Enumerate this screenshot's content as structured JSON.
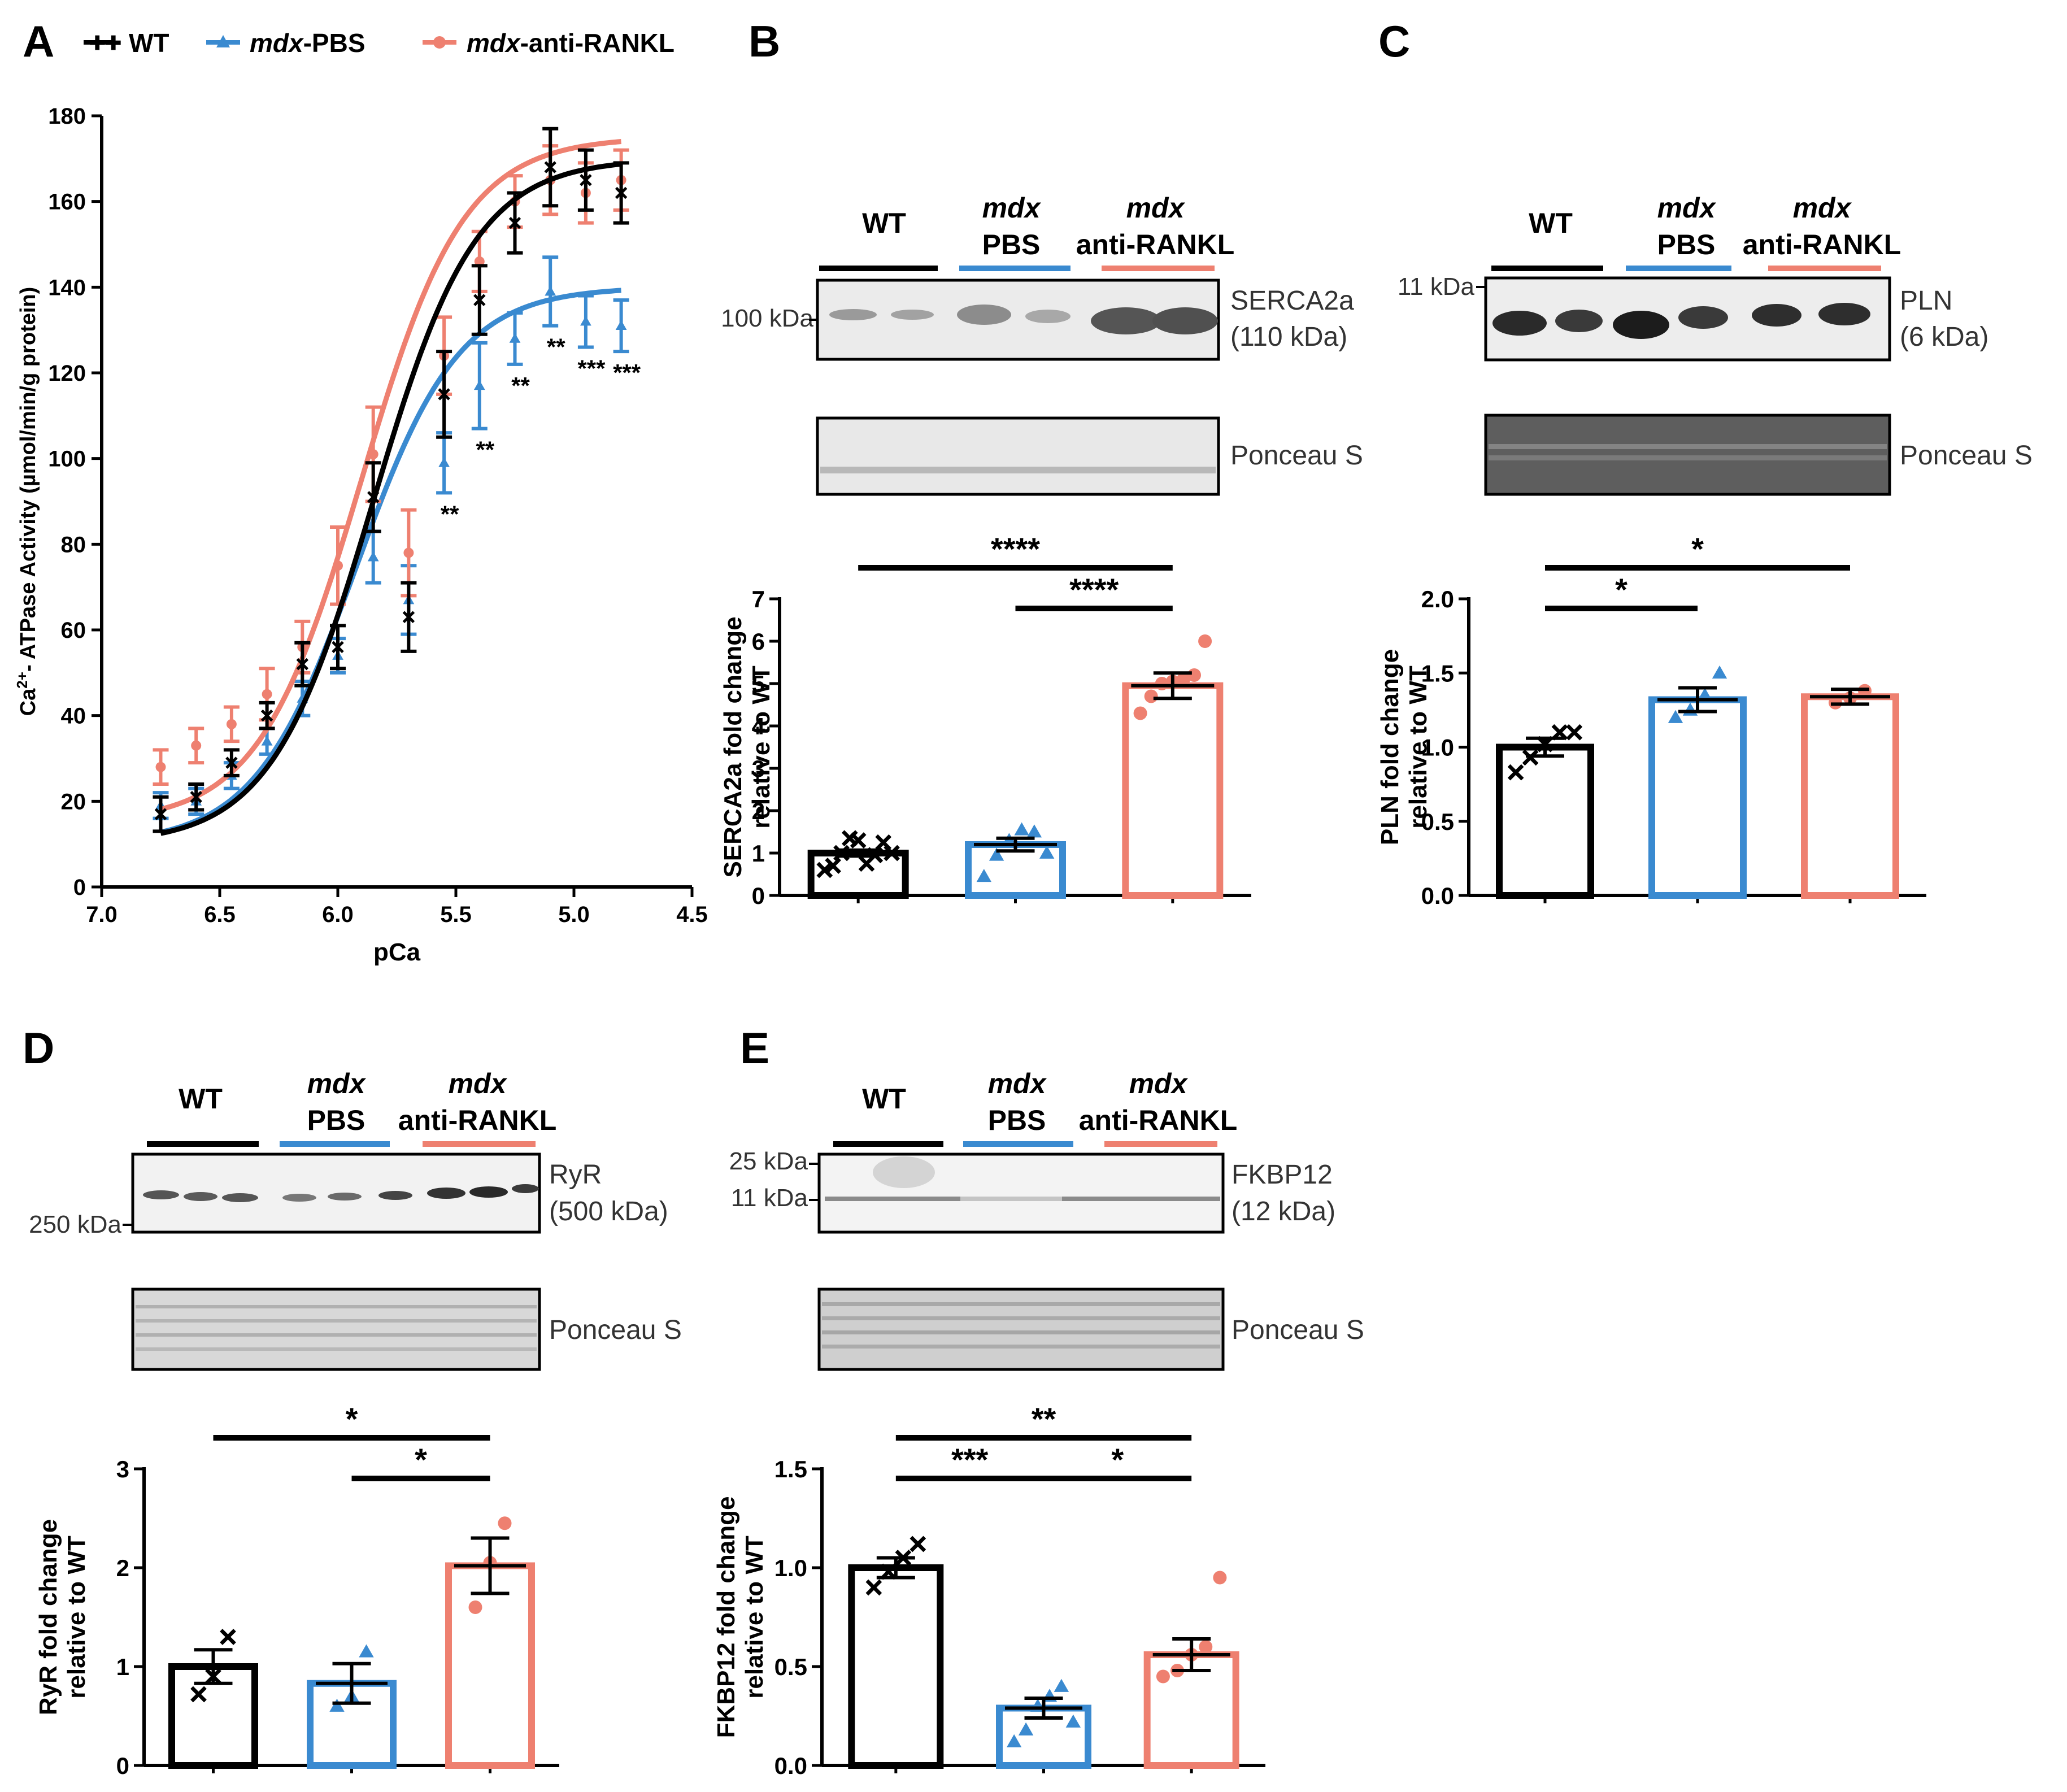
{
  "colors": {
    "wt": "#000000",
    "pbs": "#3a8ad0",
    "rankl": "#ee8070"
  },
  "legend": {
    "wt": "WT",
    "mdx": "mdx",
    "pbs_suffix": "-PBS",
    "rankl_suffix": "-anti-RANKL"
  },
  "panels": {
    "A": "A",
    "B": "B",
    "C": "C",
    "D": "D",
    "E": "E"
  },
  "lanes": {
    "wt": "WT",
    "mdx": "mdx",
    "pbs": "PBS",
    "rankl": "anti-RANKL"
  },
  "blots": {
    "B": {
      "marker": "100 kDa",
      "protein": "SERCA2a",
      "size": "(110 kDa)",
      "loading": "Ponceau S"
    },
    "C": {
      "marker": "11 kDa",
      "protein": "PLN",
      "size": "(6 kDa)",
      "loading": "Ponceau S"
    },
    "D": {
      "marker": "250 kDa",
      "protein": "RyR",
      "size": "(500 kDa)",
      "loading": "Ponceau S"
    },
    "E": {
      "marker1": "25 kDa",
      "marker2": "11 kDa",
      "protein": "FKBP12",
      "size": "(12 kDa)",
      "loading": "Ponceau S"
    }
  },
  "chart_data": [
    {
      "panel": "A",
      "type": "line",
      "xlabel": "pCa",
      "ylabel_prefix": "Ca",
      "ylabel_sup": "2+",
      "ylabel_suffix": "- ATPase Activity (µmol/min/g protein)",
      "xlim": [
        7.0,
        4.5
      ],
      "ylim": [
        0,
        180
      ],
      "xticks": [
        "7.0",
        "6.5",
        "6.0",
        "5.5",
        "5.0",
        "4.5"
      ],
      "yticks": [
        "0",
        "20",
        "40",
        "60",
        "80",
        "100",
        "120",
        "140",
        "160",
        "180"
      ],
      "x": [
        6.75,
        6.6,
        6.45,
        6.3,
        6.15,
        6.0,
        5.85,
        5.7,
        5.55,
        5.4,
        5.25,
        5.1,
        4.95,
        4.8
      ],
      "series": [
        {
          "name": "WT",
          "values": [
            17,
            21,
            29,
            40,
            52,
            56,
            91,
            63,
            115,
            137,
            155,
            168,
            165,
            162
          ],
          "errors": [
            4,
            3,
            3,
            3,
            5,
            5,
            8,
            8,
            10,
            8,
            7,
            9,
            7,
            7
          ],
          "fit_max": 170,
          "fit_min": 10,
          "fit_ec50": 5.85
        },
        {
          "name": "mdx-PBS",
          "values": [
            19,
            20,
            26,
            34,
            44,
            54,
            77,
            67,
            99,
            117,
            128,
            139,
            132,
            131
          ],
          "errors": [
            3,
            3,
            3,
            3,
            4,
            4,
            6,
            8,
            7,
            10,
            6,
            8,
            6,
            6
          ],
          "fit_max": 140,
          "fit_min": 10,
          "fit_ec50": 5.92
        },
        {
          "name": "mdx-anti-RANKL",
          "values": [
            28,
            33,
            38,
            45,
            56,
            75,
            101,
            78,
            124,
            146,
            160,
            165,
            162,
            165
          ],
          "errors": [
            4,
            4,
            4,
            6,
            6,
            9,
            11,
            10,
            9,
            7,
            6,
            8,
            7,
            7
          ],
          "fit_max": 175,
          "fit_min": 15,
          "fit_ec50": 5.9
        }
      ],
      "annotations": [
        {
          "x": 5.55,
          "label": "**"
        },
        {
          "x": 5.4,
          "label": "**"
        },
        {
          "x": 5.25,
          "label": "**"
        },
        {
          "x": 5.1,
          "label": "**"
        },
        {
          "x": 4.95,
          "label": "***"
        },
        {
          "x": 4.8,
          "label": "***"
        }
      ]
    },
    {
      "panel": "B",
      "type": "bar",
      "ylabel": "SERCA2a fold change relative to WT",
      "ylim": [
        0,
        7
      ],
      "yticks": [
        "0",
        "1",
        "2",
        "3",
        "4",
        "5",
        "6",
        "7"
      ],
      "categories": [
        "WT",
        "mdx-PBS",
        "mdx-anti-RANKL"
      ],
      "values": [
        1.0,
        1.2,
        4.95
      ],
      "errors": [
        0.07,
        0.15,
        0.3
      ],
      "points": [
        [
          0.6,
          0.7,
          1.0,
          1.35,
          1.3,
          0.75,
          0.95,
          1.25,
          1.0
        ],
        [
          0.45,
          0.95,
          1.3,
          1.55,
          1.5,
          1.0
        ],
        [
          4.3,
          4.7,
          5.0,
          5.05,
          5.1,
          5.2,
          6.0
        ]
      ],
      "significance": [
        {
          "from": 0,
          "to": 2,
          "label": "****"
        },
        {
          "from": 1,
          "to": 2,
          "label": "****"
        }
      ]
    },
    {
      "panel": "C",
      "type": "bar",
      "ylabel": "PLN fold change relative to WT",
      "ylim": [
        0,
        2.0
      ],
      "yticks": [
        "0.0",
        "0.5",
        "1.0",
        "1.5",
        "2.0"
      ],
      "categories": [
        "WT",
        "mdx-PBS",
        "mdx-anti-RANKL"
      ],
      "values": [
        1.0,
        1.32,
        1.34
      ],
      "errors": [
        0.06,
        0.08,
        0.05
      ],
      "points": [
        [
          0.83,
          0.93,
          1.02,
          1.1,
          1.1
        ],
        [
          1.2,
          1.25,
          1.35,
          1.5
        ],
        [
          1.3,
          1.33,
          1.38
        ]
      ],
      "significance": [
        {
          "from": 0,
          "to": 2,
          "label": "*"
        },
        {
          "from": 0,
          "to": 1,
          "label": "*"
        }
      ]
    },
    {
      "panel": "D",
      "type": "bar",
      "ylabel": "RyR fold change relative to WT",
      "ylim": [
        0,
        3
      ],
      "yticks": [
        "0",
        "1",
        "2",
        "3"
      ],
      "categories": [
        "WT",
        "mdx-PBS",
        "mdx-anti-RANKL"
      ],
      "values": [
        1.0,
        0.83,
        2.02
      ],
      "errors": [
        0.17,
        0.2,
        0.28
      ],
      "points": [
        [
          0.72,
          0.9,
          1.3
        ],
        [
          0.6,
          0.7,
          1.15
        ],
        [
          1.6,
          2.05,
          2.45
        ]
      ],
      "significance": [
        {
          "from": 0,
          "to": 2,
          "label": "*"
        },
        {
          "from": 1,
          "to": 2,
          "label": "*"
        }
      ]
    },
    {
      "panel": "E",
      "type": "bar",
      "ylabel": "FKBP12 fold change relative to WT",
      "ylim": [
        0,
        1.5
      ],
      "yticks": [
        "0.0",
        "0.5",
        "1.0",
        "1.5"
      ],
      "categories": [
        "WT",
        "mdx-PBS",
        "mdx-anti-RANKL"
      ],
      "values": [
        1.0,
        0.29,
        0.56
      ],
      "errors": [
        0.05,
        0.05,
        0.08
      ],
      "points": [
        [
          0.9,
          0.98,
          1.05,
          1.12
        ],
        [
          0.12,
          0.18,
          0.3,
          0.35,
          0.4,
          0.22
        ],
        [
          0.45,
          0.48,
          0.56,
          0.6,
          0.95
        ]
      ],
      "significance": [
        {
          "from": 0,
          "to": 2,
          "label": "**"
        },
        {
          "from": 0,
          "to": 1,
          "label": "***"
        },
        {
          "from": 1,
          "to": 2,
          "label": "*"
        }
      ]
    }
  ]
}
